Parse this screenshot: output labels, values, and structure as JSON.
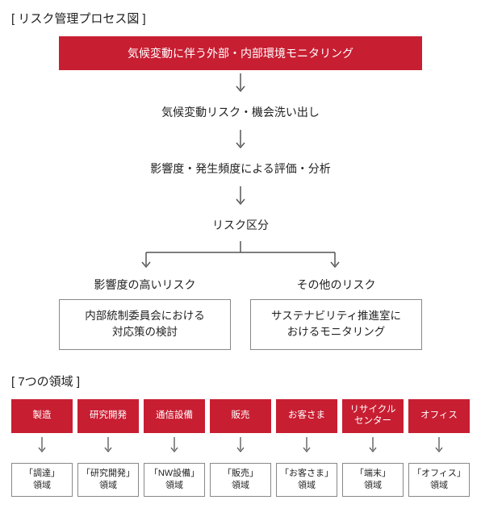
{
  "colors": {
    "red": "#c81e32",
    "border": "#888",
    "text": "#222",
    "arrow": "#555"
  },
  "section1": {
    "title": "[ リスク管理プロセス図 ]",
    "steps": [
      "気候変動に伴う外部・内部環境モニタリング",
      "気候変動リスク・機会洗い出し",
      "影響度・発生頻度による評価・分析",
      "リスク区分"
    ],
    "branches": [
      {
        "label": "影響度の高いリスク",
        "box": "内部統制委員会における\n対応策の検討"
      },
      {
        "label": "その他のリスク",
        "box": "サステナビリティ推進室に\nおけるモニタリング"
      }
    ]
  },
  "section2": {
    "title": "[ 7つの領域 ]",
    "items": [
      {
        "top": "製造",
        "bot1": "「調達」",
        "bot2": "領域"
      },
      {
        "top": "研究開発",
        "bot1": "「研究開発」",
        "bot2": "領域"
      },
      {
        "top": "通信設備",
        "bot1": "「NW設備」",
        "bot2": "領域"
      },
      {
        "top": "販売",
        "bot1": "「販売」",
        "bot2": "領域"
      },
      {
        "top": "お客さま",
        "bot1": "「お客さま」",
        "bot2": "領域"
      },
      {
        "top": "リサイクル\nセンター",
        "bot1": "「端末」",
        "bot2": "領域"
      },
      {
        "top": "オフィス",
        "bot1": "「オフィス」",
        "bot2": "領域"
      }
    ]
  }
}
